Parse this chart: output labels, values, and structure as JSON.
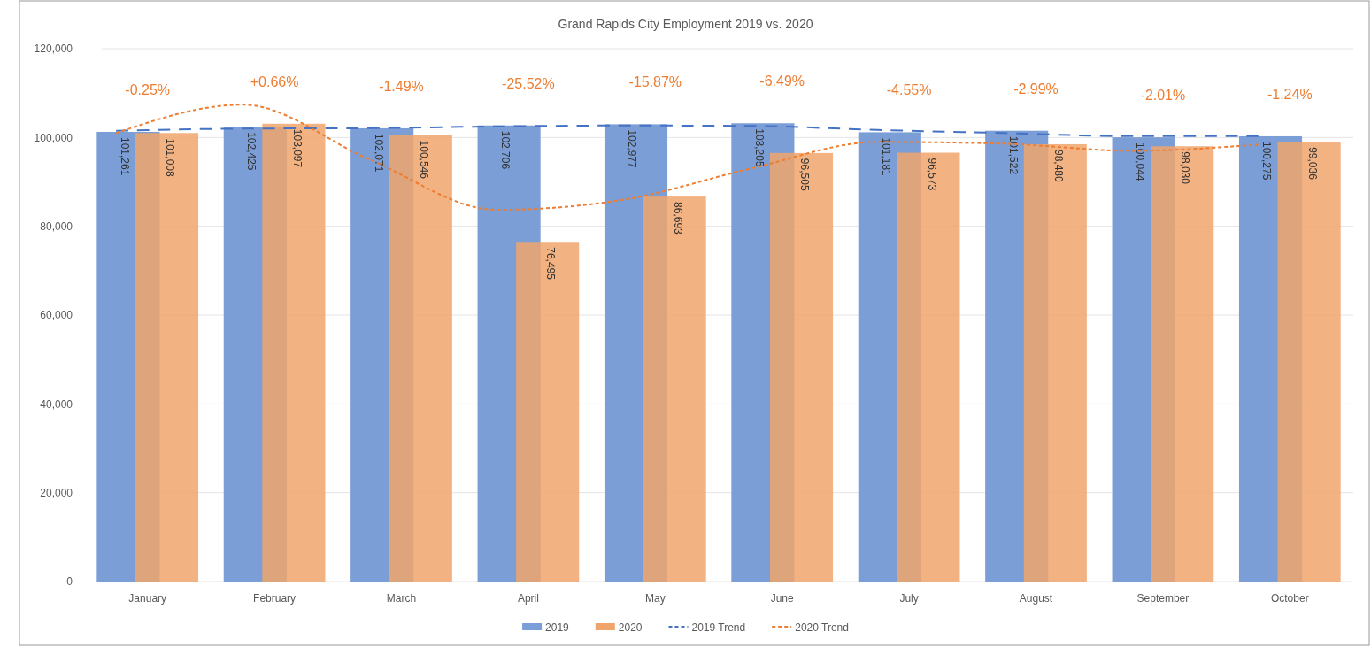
{
  "chart_data": {
    "type": "bar",
    "title": "Grand Rapids City Employment 2019 vs. 2020",
    "categories": [
      "January",
      "February",
      "March",
      "April",
      "May",
      "June",
      "July",
      "August",
      "September",
      "October"
    ],
    "series": [
      {
        "name": "2019",
        "color": "#7b9ed6",
        "values": [
          101261,
          102425,
          102071,
          102706,
          102977,
          103205,
          101181,
          101522,
          100044,
          100275
        ],
        "value_labels": [
          "101,261",
          "102,425",
          "102,071",
          "102,706",
          "102,977",
          "103,205",
          "101,181",
          "101,522",
          "100,044",
          "100,275"
        ]
      },
      {
        "name": "2020",
        "color": "#f0a46c",
        "values": [
          101008,
          103097,
          100546,
          76495,
          86693,
          96505,
          96573,
          98480,
          98030,
          99036
        ],
        "value_labels": [
          "101,008",
          "103,097",
          "100,546",
          "76,495",
          "86,693",
          "96,505",
          "96,573",
          "98,480",
          "98,030",
          "99,036"
        ]
      },
      {
        "name": "2019 Trend",
        "type": "line",
        "color": "#4472c4",
        "line_style": "dashed",
        "values": [
          101500,
          102000,
          102100,
          102500,
          102700,
          102600,
          101700,
          101000,
          100300,
          100300
        ]
      },
      {
        "name": "2020 Trend",
        "type": "line",
        "color": "#ed7d31",
        "line_style": "dotted",
        "values": [
          101000,
          107400,
          95000,
          83700,
          86000,
          93000,
          99000,
          98600,
          97000,
          98400
        ]
      }
    ],
    "ylim": [
      0,
      120000
    ],
    "yticks": [
      {
        "value": 0,
        "label": "0"
      },
      {
        "value": 20000,
        "label": "20,000"
      },
      {
        "value": 40000,
        "label": "40,000"
      },
      {
        "value": 60000,
        "label": "60,000"
      },
      {
        "value": 80000,
        "label": "80,000"
      },
      {
        "value": 100000,
        "label": "100,000"
      },
      {
        "value": 120000,
        "label": "120,000"
      }
    ],
    "grid": "y",
    "legend": "bottom",
    "annotations": [
      "-0.25%",
      "+0.66%",
      "-1.49%",
      "-25.52%",
      "-15.87%",
      "-6.49%",
      "-4.55%",
      "-2.99%",
      "-2.01%",
      "-1.24%"
    ]
  }
}
